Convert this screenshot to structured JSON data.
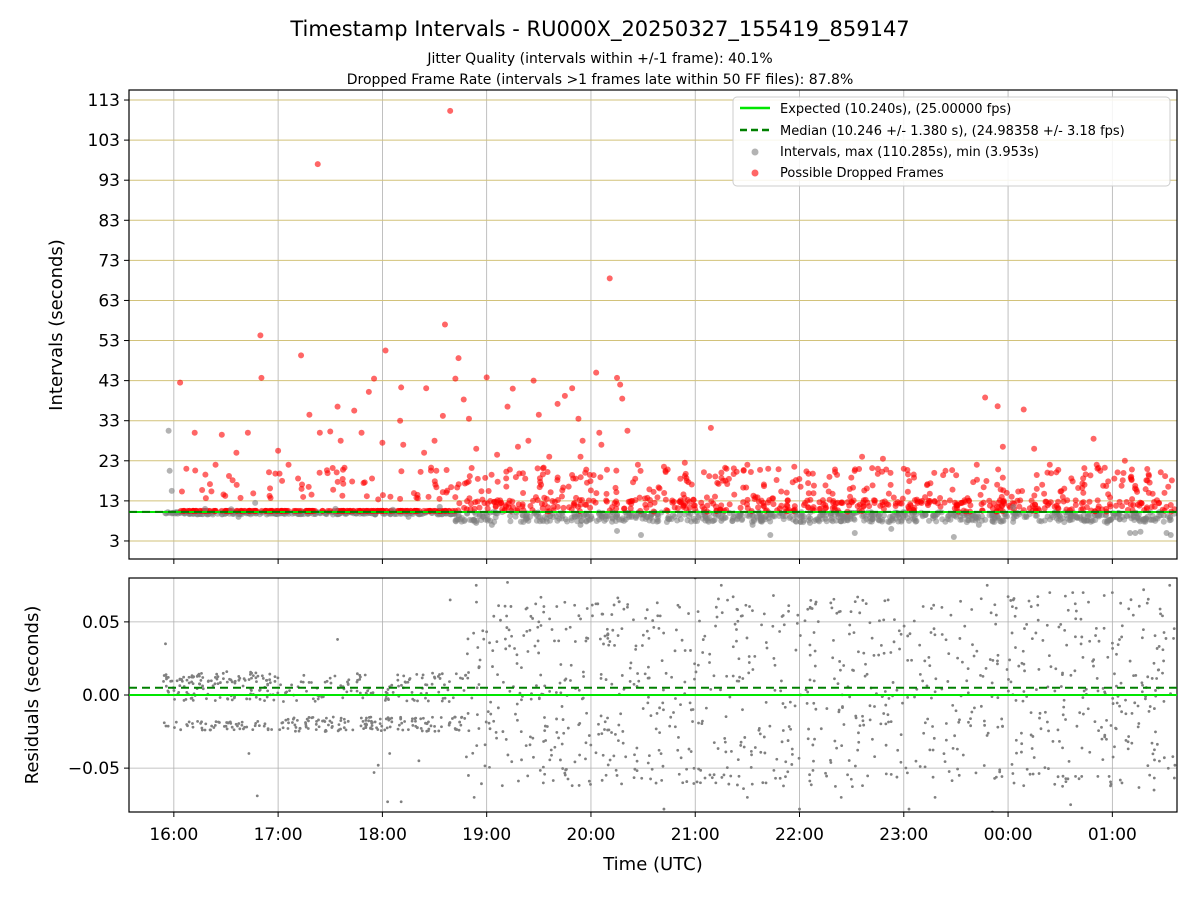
{
  "chart_data": [
    {
      "type": "scatter",
      "title": "Timestamp Intervals - RU000X_20250327_155419_859147",
      "subtitle_1": "Jitter Quality (intervals within +/-1 frame): 40.1%",
      "subtitle_2": "Dropped Frame Rate (intervals >1 frames late within 50 FF files): 87.8%",
      "xlabel": "",
      "ylabel": "Intervals (seconds)",
      "x_unit": "hours since 16:00 UTC",
      "xlim": [
        -0.43,
        9.62
      ],
      "ylim": [
        -1.5,
        115.5
      ],
      "yticks": [
        3,
        13,
        23,
        33,
        43,
        53,
        63,
        73,
        83,
        93,
        103,
        113
      ],
      "ytick_labels": [
        "3",
        "13",
        "23",
        "33",
        "43",
        "53",
        "63",
        "73",
        "83",
        "93",
        "103",
        "113"
      ],
      "xticks": [
        0,
        1,
        2,
        3,
        4,
        5,
        6,
        7,
        8,
        9
      ],
      "grid": true,
      "legend_position": "top-right",
      "legend": [
        {
          "label": "Expected (10.240s), (25.00000 fps)",
          "kind": "line",
          "color": "#00e600",
          "dash": "solid"
        },
        {
          "label": "Median (10.246 +/- 1.380 s), (24.98358 +/- 3.18 fps)",
          "kind": "line",
          "color": "#008000",
          "dash": "dashed"
        },
        {
          "label": "Intervals, max (110.285s), min (3.953s)",
          "kind": "marker",
          "color": "#808080"
        },
        {
          "label": "Possible Dropped Frames",
          "kind": "marker",
          "color": "#ff0000"
        }
      ],
      "expected": 10.24,
      "median": 10.246,
      "series": [
        {
          "name": "Possible Dropped Frames",
          "color": "#ff0000",
          "points": [
            [
              0.06,
              42.5
            ],
            [
              0.71,
              30.0
            ],
            [
              0.83,
              54.3
            ],
            [
              0.84,
              43.7
            ],
            [
              1.22,
              49.3
            ],
            [
              1.3,
              34.5
            ],
            [
              1.38,
              97.0
            ],
            [
              1.5,
              30.3
            ],
            [
              1.57,
              36.5
            ],
            [
              1.73,
              35.5
            ],
            [
              1.87,
              40.2
            ],
            [
              1.92,
              43.5
            ],
            [
              2.03,
              50.5
            ],
            [
              2.17,
              33.0
            ],
            [
              2.18,
              41.3
            ],
            [
              2.42,
              41.1
            ],
            [
              2.58,
              34.2
            ],
            [
              2.6,
              57.0
            ],
            [
              2.65,
              110.3
            ],
            [
              2.7,
              43.5
            ],
            [
              2.73,
              48.6
            ],
            [
              2.78,
              38.3
            ],
            [
              2.83,
              33.5
            ],
            [
              3.0,
              43.8
            ],
            [
              3.2,
              36.5
            ],
            [
              3.25,
              41.0
            ],
            [
              3.45,
              43.0
            ],
            [
              3.5,
              34.5
            ],
            [
              3.68,
              37.2
            ],
            [
              3.75,
              39.2
            ],
            [
              3.82,
              41.1
            ],
            [
              3.88,
              33.5
            ],
            [
              3.92,
              28.0
            ],
            [
              4.05,
              45.0
            ],
            [
              4.08,
              30.0
            ],
            [
              4.18,
              68.5
            ],
            [
              4.25,
              43.7
            ],
            [
              4.28,
              42.0
            ],
            [
              4.3,
              38.5
            ],
            [
              4.35,
              30.5
            ],
            [
              5.15,
              31.2
            ],
            [
              7.78,
              38.8
            ],
            [
              7.9,
              36.6
            ],
            [
              8.15,
              35.8
            ],
            [
              8.82,
              28.5
            ],
            [
              9.12,
              23.0
            ],
            [
              0.12,
              21.0
            ],
            [
              0.2,
              30.0
            ],
            [
              0.4,
              22.0
            ],
            [
              0.46,
              29.5
            ],
            [
              0.6,
              25.0
            ],
            [
              1.0,
              25.5
            ],
            [
              1.1,
              22.0
            ],
            [
              1.4,
              30.0
            ],
            [
              1.6,
              28.0
            ],
            [
              1.8,
              30.0
            ],
            [
              2.0,
              27.5
            ],
            [
              2.2,
              27.0
            ],
            [
              2.4,
              25.0
            ],
            [
              2.5,
              28.0
            ],
            [
              2.9,
              26.0
            ],
            [
              3.1,
              24.5
            ],
            [
              3.3,
              26.5
            ],
            [
              3.4,
              28.0
            ],
            [
              3.6,
              24.0
            ],
            [
              3.9,
              24.0
            ],
            [
              4.1,
              27.0
            ],
            [
              4.45,
              22.0
            ],
            [
              4.7,
              21.5
            ],
            [
              4.9,
              22.5
            ],
            [
              5.3,
              21.0
            ],
            [
              5.5,
              22.0
            ],
            [
              5.7,
              21.0
            ],
            [
              5.95,
              21.5
            ],
            [
              6.6,
              24.0
            ],
            [
              6.8,
              23.5
            ],
            [
              7.0,
              21.0
            ],
            [
              7.4,
              20.5
            ],
            [
              7.7,
              22.0
            ],
            [
              7.95,
              26.5
            ],
            [
              8.25,
              26.0
            ],
            [
              8.4,
              22.0
            ],
            [
              8.85,
              22.0
            ],
            [
              9.35,
              15.0
            ],
            [
              9.5,
              15.0
            ]
          ]
        },
        {
          "name": "Intervals, max (110.285s), min (3.953s)",
          "color": "#808080",
          "points": [
            [
              -0.05,
              30.5
            ],
            [
              -0.04,
              20.5
            ],
            [
              -0.02,
              15.5
            ],
            [
              0.3,
              11.0
            ],
            [
              0.55,
              10.9
            ],
            [
              0.62,
              9.0
            ],
            [
              0.78,
              12.5
            ],
            [
              1.55,
              11.0
            ],
            [
              2.1,
              10.8
            ],
            [
              2.25,
              9.0
            ],
            [
              2.55,
              11.5
            ],
            [
              2.9,
              7.5
            ],
            [
              3.05,
              7.0
            ],
            [
              3.4,
              8.0
            ],
            [
              3.9,
              7.0
            ],
            [
              4.25,
              5.5
            ],
            [
              4.48,
              4.5
            ],
            [
              4.85,
              9.5
            ],
            [
              5.25,
              8.0
            ],
            [
              5.55,
              7.0
            ],
            [
              5.72,
              4.5
            ],
            [
              6.1,
              7.5
            ],
            [
              6.25,
              8.5
            ],
            [
              6.53,
              5.0
            ],
            [
              6.88,
              6.0
            ],
            [
              7.05,
              8.0
            ],
            [
              7.3,
              9.0
            ],
            [
              7.48,
              4.0
            ],
            [
              7.72,
              7.0
            ],
            [
              7.85,
              8.0
            ],
            [
              8.05,
              11.5
            ],
            [
              8.3,
              8.0
            ],
            [
              8.6,
              9.0
            ],
            [
              8.95,
              7.5
            ],
            [
              9.17,
              5.0
            ],
            [
              9.22,
              5.0
            ],
            [
              9.27,
              5.3
            ],
            [
              9.52,
              5.0
            ],
            [
              9.56,
              4.5
            ]
          ]
        }
      ]
    },
    {
      "type": "scatter",
      "xlabel": "Time (UTC)",
      "ylabel": "Residuals (seconds)",
      "x_unit": "hours since 16:00 UTC",
      "xlim": [
        -0.43,
        9.62
      ],
      "ylim": [
        -0.08,
        0.08
      ],
      "yticks": [
        -0.05,
        0.0,
        0.05
      ],
      "ytick_labels": [
        "−0.05",
        "0.00",
        "0.05"
      ],
      "xticks": [
        0,
        1,
        2,
        3,
        4,
        5,
        6,
        7,
        8,
        9
      ],
      "xtick_labels": [
        "16:00",
        "17:00",
        "18:00",
        "19:00",
        "20:00",
        "21:00",
        "22:00",
        "23:00",
        "00:00",
        "01:00"
      ],
      "grid": true,
      "expected_residual": 0.0,
      "median_residual": 0.005,
      "series": [
        {
          "name": "Residuals",
          "color": "#808080",
          "points": [
            [
              -0.08,
              0.035
            ],
            [
              0.72,
              -0.04
            ],
            [
              0.8,
              -0.069
            ],
            [
              1.57,
              0.038
            ],
            [
              1.92,
              -0.053
            ],
            [
              1.96,
              -0.048
            ],
            [
              2.05,
              -0.073
            ],
            [
              2.07,
              -0.04
            ],
            [
              2.18,
              -0.073
            ],
            [
              2.35,
              -0.045
            ],
            [
              2.65,
              0.065
            ],
            [
              2.88,
              -0.07
            ],
            [
              2.9,
              0.075
            ],
            [
              3.15,
              -0.062
            ],
            [
              3.2,
              0.077
            ],
            [
              3.5,
              0.05
            ],
            [
              3.82,
              -0.062
            ],
            [
              4.2,
              0.055
            ],
            [
              4.25,
              -0.055
            ],
            [
              4.35,
              0.06
            ],
            [
              4.7,
              -0.078
            ],
            [
              4.85,
              0.06
            ],
            [
              4.88,
              -0.06
            ],
            [
              5.0,
              0.08
            ],
            [
              5.05,
              -0.06
            ],
            [
              5.25,
              0.075
            ],
            [
              5.5,
              -0.07
            ],
            [
              5.75,
              0.068
            ],
            [
              6.0,
              -0.078
            ],
            [
              6.3,
              0.063
            ],
            [
              6.4,
              -0.07
            ],
            [
              6.85,
              0.065
            ],
            [
              7.05,
              -0.078
            ],
            [
              7.3,
              -0.07
            ],
            [
              7.8,
              0.075
            ],
            [
              7.85,
              -0.08
            ],
            [
              8.05,
              0.065
            ],
            [
              8.15,
              -0.062
            ],
            [
              8.4,
              0.07
            ],
            [
              8.6,
              -0.075
            ],
            [
              8.62,
              0.07
            ],
            [
              8.72,
              0.07
            ],
            [
              9.0,
              0.07
            ],
            [
              9.3,
              0.072
            ],
            [
              9.4,
              -0.065
            ],
            [
              9.55,
              0.075
            ],
            [
              9.6,
              -0.048
            ]
          ]
        }
      ]
    }
  ]
}
